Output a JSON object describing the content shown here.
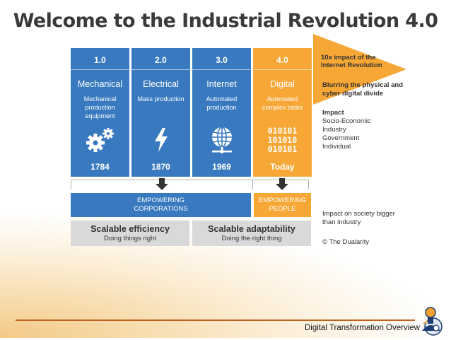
{
  "title": "Welcome to the Industrial Revolution 4.0",
  "columns": [
    {
      "num": "1.0",
      "name": "Mechanical",
      "desc": "Mechanical production equipment",
      "year": "1784",
      "icon": "gears-icon"
    },
    {
      "num": "2.0",
      "name": "Electrical",
      "desc": "Mass production",
      "year": "1870",
      "icon": "lightning-icon"
    },
    {
      "num": "3.0",
      "name": "Internet",
      "desc": "Automated production",
      "year": "1969",
      "icon": "globe-icon"
    },
    {
      "num": "4.0",
      "name": "Digital",
      "desc": "Automated complex tasks",
      "year": "Today",
      "icon": "binary-icon",
      "binary": [
        "010101",
        "101010",
        "010101"
      ]
    }
  ],
  "arrow_text": "10x impact of the Internet Revolution",
  "side": {
    "blurring": "Blurring the physical and cyber digital divide",
    "impact_title": "Impact",
    "impact_items": [
      "Socio-Economic",
      "Industry",
      "Government",
      "Individual"
    ],
    "society": "Impact on society bigger than industry",
    "credit": "© The Dualarity"
  },
  "empowering": {
    "corporations": "EMPOWERING CORPORATIONS",
    "people": "EMPOWERING PEOPLE"
  },
  "scalable": [
    {
      "title": "Scalable efficiency",
      "sub": "Doing things right"
    },
    {
      "title": "Scalable adaptability",
      "sub": "Doing the right thing"
    }
  ],
  "footer": "Digital Transformation Overview",
  "colors": {
    "blue": "#3879bf",
    "orange": "#f6a735",
    "grey": "#d9d9d9",
    "footer_line": "#c0621e"
  }
}
